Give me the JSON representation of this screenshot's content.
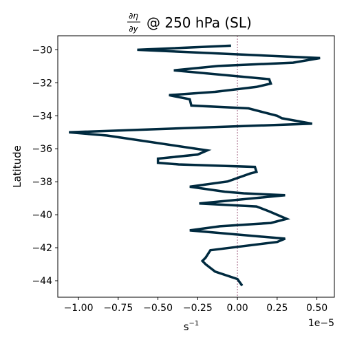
{
  "chart_data": {
    "type": "line",
    "title": {
      "frac_num": "∂η",
      "frac_den": "∂y",
      "rest": "@ 250 hPa (SL)"
    },
    "xlabel": "s",
    "xlabel_exp": "−1",
    "ylabel": "Latitude",
    "offset_text": "1e−5",
    "xlim": [
      -1.13,
      0.61
    ],
    "ylim": [
      -45.0,
      -29.15
    ],
    "xticks": [
      -1.0,
      -0.75,
      -0.5,
      -0.25,
      0.0,
      0.25,
      0.5
    ],
    "xtick_labels": [
      "−1.00",
      "−0.75",
      "−0.50",
      "−0.25",
      "0.00",
      "0.25",
      "0.50"
    ],
    "yticks": [
      -30,
      -32,
      -34,
      -36,
      -38,
      -40,
      -42,
      -44
    ],
    "ytick_labels": [
      "−30",
      "−32",
      "−34",
      "−36",
      "−38",
      "−40",
      "−42",
      "−44"
    ],
    "grid": false,
    "line_color": "#002a3f",
    "zero_line_color": "#8b3a62",
    "series": [
      {
        "x": [
          -0.04,
          -0.63,
          0.52,
          0.35,
          -0.12,
          -0.4,
          0.2,
          0.21,
          0.12,
          -0.14,
          -0.43,
          -0.3,
          -0.29,
          0.07,
          0.25,
          0.28,
          0.47,
          -0.13,
          -1.06,
          -0.82,
          -0.19,
          -0.25,
          -0.5,
          -0.5,
          -0.37,
          0.11,
          0.12,
          0.08,
          -0.06,
          -0.3,
          -0.08,
          0.04,
          0.3,
          -0.24,
          0.12,
          0.2,
          0.31,
          0.21,
          -0.11,
          -0.3,
          0.3,
          0.25,
          -0.17,
          -0.2,
          -0.22,
          -0.2,
          -0.14,
          0.0,
          0.03
        ],
        "y": [
          -29.75,
          -30.0,
          -30.5,
          -30.78,
          -30.98,
          -31.25,
          -31.78,
          -32.05,
          -32.25,
          -32.55,
          -32.75,
          -33.0,
          -33.38,
          -33.55,
          -34.0,
          -34.15,
          -34.48,
          -34.68,
          -35.0,
          -35.2,
          -36.1,
          -36.35,
          -36.6,
          -36.85,
          -36.95,
          -37.1,
          -37.4,
          -37.5,
          -37.98,
          -38.3,
          -38.6,
          -38.7,
          -38.82,
          -39.32,
          -39.5,
          -39.8,
          -40.25,
          -40.5,
          -40.7,
          -40.95,
          -41.45,
          -41.65,
          -42.15,
          -42.6,
          -42.8,
          -43.0,
          -43.45,
          -43.9,
          -44.3
        ]
      }
    ]
  }
}
